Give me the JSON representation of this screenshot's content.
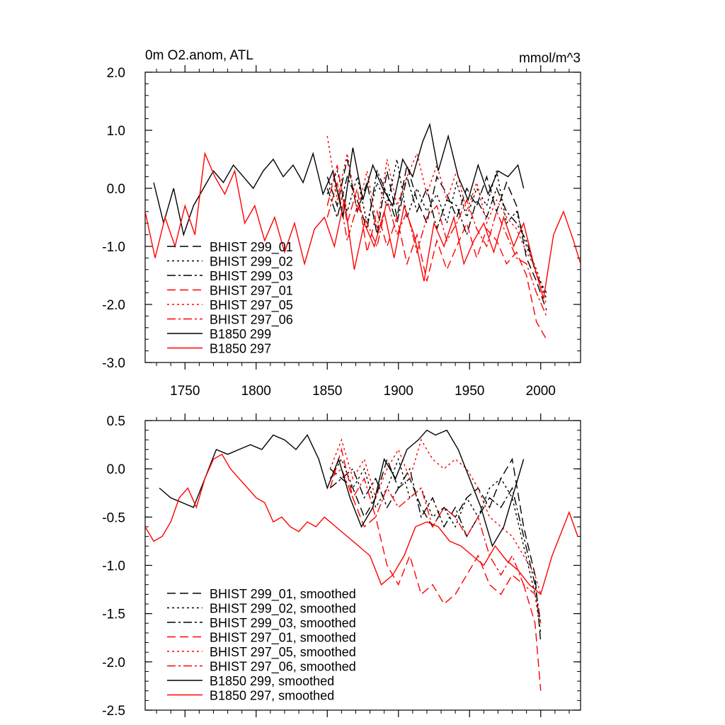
{
  "colors": {
    "black": "#000000",
    "red": "#ff0000"
  },
  "chart_data": [
    {
      "type": "line",
      "title": "0m O2.anom, ATL",
      "units": "mmol/m^3",
      "xlim": [
        1722,
        2028
      ],
      "ylim": [
        -3.0,
        2.0
      ],
      "xticks": [
        1750,
        1800,
        1850,
        1900,
        1950,
        2000
      ],
      "yticks": [
        2.0,
        1.0,
        0.0,
        -1.0,
        -2.0,
        -3.0
      ],
      "ytick_labels": [
        "2.0",
        "1.0",
        "0.0",
        "-1.0",
        "-2.0",
        "-3.0"
      ],
      "xtick_labels": [
        "1750",
        "1800",
        "1850",
        "1900",
        "1950",
        "2000"
      ],
      "legend_position": "lower-left",
      "series": [
        {
          "name": "BHIST 299_01",
          "color": "#000000",
          "dash": "dash",
          "x": [
            1850,
            1857,
            1864,
            1871,
            1878,
            1885,
            1892,
            1899,
            1906,
            1913,
            1920,
            1927,
            1934,
            1941,
            1948,
            1955,
            1962,
            1969,
            1976,
            1983,
            1990,
            1997,
            2004
          ],
          "y": [
            0.2,
            -0.3,
            0.5,
            -0.4,
            0.1,
            -0.8,
            0.3,
            -0.5,
            0.4,
            -0.2,
            -0.6,
            0.2,
            -0.1,
            -0.5,
            0.0,
            -0.3,
            0.2,
            -0.4,
            0.1,
            -0.3,
            -1.2,
            -1.6,
            -2.1
          ]
        },
        {
          "name": "BHIST 299_02",
          "color": "#000000",
          "dash": "dot",
          "x": [
            1850,
            1857,
            1864,
            1871,
            1878,
            1885,
            1892,
            1899,
            1906,
            1913,
            1920,
            1927,
            1934,
            1941,
            1948,
            1955,
            1962,
            1969,
            1976,
            1983,
            1990,
            1997,
            2004
          ],
          "y": [
            -0.1,
            0.3,
            -0.4,
            0.2,
            -0.6,
            0.1,
            -0.3,
            0.5,
            -0.5,
            0.0,
            -0.4,
            -0.1,
            -0.6,
            0.1,
            -0.5,
            0.0,
            -0.3,
            0.3,
            -0.6,
            -0.4,
            -1.0,
            -1.4,
            -1.9
          ]
        },
        {
          "name": "BHIST 299_03",
          "color": "#000000",
          "dash": "dashdot",
          "x": [
            1850,
            1857,
            1864,
            1871,
            1878,
            1885,
            1892,
            1899,
            1906,
            1913,
            1920,
            1927,
            1934,
            1941,
            1948,
            1955,
            1962,
            1969,
            1976,
            1983,
            1990,
            1997,
            2004
          ],
          "y": [
            0.0,
            -0.5,
            0.2,
            -0.2,
            -0.7,
            0.3,
            -0.1,
            -0.6,
            0.2,
            -0.4,
            0.0,
            -0.7,
            -0.2,
            -0.3,
            -0.8,
            -0.2,
            -0.5,
            0.0,
            -0.4,
            -0.6,
            -0.9,
            -1.5,
            -1.8
          ]
        },
        {
          "name": "BHIST 297_01",
          "color": "#ff0000",
          "dash": "dash",
          "x": [
            1850,
            1857,
            1864,
            1871,
            1878,
            1885,
            1892,
            1899,
            1906,
            1913,
            1920,
            1927,
            1934,
            1941,
            1948,
            1955,
            1962,
            1969,
            1976,
            1983,
            1990,
            1997,
            2004
          ],
          "y": [
            -0.3,
            0.4,
            -0.6,
            0.0,
            -1.1,
            -0.4,
            -1.0,
            -0.5,
            -1.3,
            -0.8,
            -1.6,
            -0.9,
            -1.4,
            -1.0,
            -0.6,
            -1.2,
            -0.7,
            -0.9,
            -1.3,
            -1.1,
            -1.5,
            -2.3,
            -2.6
          ]
        },
        {
          "name": "BHIST 297_05",
          "color": "#ff0000",
          "dash": "dot",
          "x": [
            1850,
            1857,
            1864,
            1871,
            1878,
            1885,
            1892,
            1899,
            1906,
            1913,
            1920,
            1927,
            1934,
            1941,
            1948,
            1955,
            1962,
            1969,
            1976,
            1983,
            1990,
            1997,
            2004
          ],
          "y": [
            0.9,
            -0.2,
            0.6,
            -0.4,
            0.3,
            -0.7,
            0.5,
            -0.3,
            0.2,
            0.6,
            -0.1,
            0.4,
            -0.2,
            0.3,
            -0.4,
            0.1,
            -0.6,
            -0.2,
            -0.5,
            -0.7,
            -1.1,
            -1.4,
            -2.0
          ]
        },
        {
          "name": "BHIST 297_06",
          "color": "#ff0000",
          "dash": "dashdot",
          "x": [
            1850,
            1857,
            1864,
            1871,
            1878,
            1885,
            1892,
            1899,
            1906,
            1913,
            1920,
            1927,
            1934,
            1941,
            1948,
            1955,
            1962,
            1969,
            1976,
            1983,
            1990,
            1997,
            2004
          ],
          "y": [
            -0.5,
            0.1,
            -0.9,
            -0.3,
            -0.6,
            -1.0,
            -0.2,
            -0.8,
            -0.4,
            -1.1,
            -0.5,
            -0.3,
            -0.9,
            -0.6,
            -0.2,
            -0.7,
            -1.0,
            -0.4,
            -0.8,
            -1.2,
            -1.3,
            -1.8,
            -2.2
          ]
        },
        {
          "name": "B1850 299",
          "color": "#000000",
          "dash": "solid",
          "x": [
            1728,
            1735,
            1742,
            1749,
            1756,
            1763,
            1770,
            1777,
            1784,
            1791,
            1798,
            1805,
            1812,
            1819,
            1826,
            1833,
            1840,
            1847,
            1854,
            1861,
            1868,
            1875,
            1882,
            1889,
            1896,
            1903,
            1910,
            1917,
            1922,
            1928,
            1935,
            1942,
            1949,
            1956,
            1963,
            1970,
            1977,
            1984,
            1988
          ],
          "y": [
            0.1,
            -0.6,
            0.0,
            -0.8,
            -0.3,
            0.0,
            0.3,
            0.1,
            0.4,
            0.2,
            0.0,
            0.3,
            0.5,
            0.2,
            0.4,
            0.1,
            0.6,
            -0.1,
            0.3,
            -0.5,
            0.7,
            -0.2,
            0.4,
            0.0,
            -0.3,
            0.5,
            0.2,
            0.8,
            1.1,
            0.3,
            0.9,
            0.2,
            -0.2,
            0.4,
            -0.1,
            0.3,
            0.2,
            0.4,
            0.0
          ]
        },
        {
          "name": "B1850 297",
          "color": "#ff0000",
          "dash": "solid",
          "x": [
            1722,
            1729,
            1736,
            1743,
            1750,
            1757,
            1764,
            1771,
            1778,
            1785,
            1792,
            1799,
            1806,
            1813,
            1820,
            1827,
            1834,
            1841,
            1848,
            1855,
            1862,
            1869,
            1876,
            1883,
            1890,
            1897,
            1904,
            1911,
            1918,
            1925,
            1932,
            1939,
            1946,
            1953,
            1960,
            1967,
            1974,
            1981,
            1988,
            1995,
            2002,
            2009,
            2016,
            2023,
            2028
          ],
          "y": [
            -0.4,
            -1.2,
            -0.5,
            -1.0,
            -0.3,
            -0.8,
            0.6,
            0.2,
            -0.1,
            0.3,
            -0.6,
            -0.3,
            -0.9,
            -0.5,
            -1.1,
            -0.6,
            -1.3,
            -0.7,
            -0.5,
            -1.0,
            -0.2,
            -1.4,
            -0.6,
            -1.0,
            -0.4,
            -1.2,
            -0.3,
            -0.8,
            -1.6,
            -0.6,
            -1.0,
            -0.5,
            -1.3,
            -0.9,
            -0.6,
            -1.1,
            -0.5,
            -1.0,
            -0.6,
            -1.3,
            -1.9,
            -0.8,
            -0.4,
            -0.9,
            -1.3
          ]
        }
      ]
    },
    {
      "type": "line",
      "xlim": [
        1722,
        2028
      ],
      "ylim": [
        -2.5,
        0.5
      ],
      "yticks": [
        0.5,
        0.0,
        -0.5,
        -1.0,
        -1.5,
        -2.0,
        -2.5
      ],
      "ytick_labels": [
        "0.5",
        "0.0",
        "-0.5",
        "-1.0",
        "-1.5",
        "-2.0",
        "-2.5"
      ],
      "xticks": [
        1750,
        1800,
        1850,
        1900,
        1950,
        2000
      ],
      "legend_position": "lower-left",
      "series": [
        {
          "name": "BHIST 299_01, smoothed",
          "color": "#000000",
          "dash": "dash",
          "x": [
            1852,
            1860,
            1868,
            1876,
            1884,
            1892,
            1900,
            1908,
            1916,
            1924,
            1932,
            1940,
            1948,
            1956,
            1964,
            1972,
            1980,
            1988,
            1996,
            2000
          ],
          "y": [
            0.0,
            -0.1,
            -0.2,
            -0.5,
            -0.3,
            0.1,
            -0.2,
            -0.1,
            -0.4,
            -0.6,
            -0.4,
            -0.5,
            -0.3,
            -0.2,
            -0.4,
            -0.1,
            0.1,
            -0.6,
            -1.1,
            -1.8
          ]
        },
        {
          "name": "BHIST 299_02, smoothed",
          "color": "#000000",
          "dash": "dot",
          "x": [
            1852,
            1860,
            1868,
            1876,
            1884,
            1892,
            1900,
            1908,
            1916,
            1924,
            1932,
            1940,
            1948,
            1956,
            1964,
            1972,
            1980,
            1988,
            1996,
            2000
          ],
          "y": [
            -0.1,
            0.1,
            -0.2,
            0.0,
            -0.4,
            -0.2,
            0.1,
            -0.3,
            -0.2,
            -0.5,
            -0.4,
            -0.6,
            -0.3,
            -0.5,
            -0.2,
            -0.1,
            -0.3,
            -0.8,
            -1.3,
            -1.7
          ]
        },
        {
          "name": "BHIST 299_03, smoothed",
          "color": "#000000",
          "dash": "dashdot",
          "x": [
            1852,
            1860,
            1868,
            1876,
            1884,
            1892,
            1900,
            1908,
            1916,
            1924,
            1932,
            1940,
            1948,
            1956,
            1964,
            1972,
            1980,
            1988,
            1996,
            2000
          ],
          "y": [
            -0.2,
            -0.1,
            0.0,
            -0.3,
            -0.1,
            -0.4,
            -0.2,
            0.0,
            -0.5,
            -0.3,
            -0.6,
            -0.4,
            -0.7,
            -0.5,
            -0.3,
            -0.4,
            -0.2,
            -0.7,
            -1.2,
            -1.6
          ]
        },
        {
          "name": "BHIST 297_01, smoothed",
          "color": "#ff0000",
          "dash": "dash",
          "x": [
            1852,
            1860,
            1868,
            1876,
            1884,
            1892,
            1900,
            1908,
            1916,
            1924,
            1932,
            1940,
            1948,
            1956,
            1964,
            1972,
            1980,
            1988,
            1996,
            2000
          ],
          "y": [
            -0.2,
            0.2,
            -0.3,
            -0.6,
            -0.5,
            -1.0,
            -1.2,
            -0.9,
            -1.3,
            -1.2,
            -1.4,
            -1.3,
            -1.1,
            -0.9,
            -1.2,
            -1.3,
            -1.1,
            -1.2,
            -1.6,
            -2.3
          ]
        },
        {
          "name": "BHIST 297_05, smoothed",
          "color": "#ff0000",
          "dash": "dot",
          "x": [
            1852,
            1860,
            1868,
            1876,
            1884,
            1892,
            1900,
            1908,
            1916,
            1924,
            1932,
            1940,
            1948,
            1956,
            1964,
            1972,
            1980,
            1988,
            1996,
            2000
          ],
          "y": [
            0.0,
            0.3,
            -0.1,
            0.1,
            -0.3,
            0.0,
            0.2,
            -0.1,
            0.3,
            0.1,
            0.0,
            0.1,
            0.0,
            -0.2,
            -0.5,
            -0.6,
            -0.7,
            -0.9,
            -1.1,
            -1.3
          ]
        },
        {
          "name": "BHIST 297_06, smoothed",
          "color": "#ff0000",
          "dash": "dashdot",
          "x": [
            1852,
            1860,
            1868,
            1876,
            1884,
            1892,
            1900,
            1908,
            1916,
            1924,
            1932,
            1940,
            1948,
            1956,
            1964,
            1972,
            1980,
            1988,
            1996,
            2000
          ],
          "y": [
            -0.1,
            0.0,
            -0.3,
            -0.1,
            -0.5,
            -0.2,
            -0.4,
            -0.3,
            -0.2,
            -0.6,
            -0.4,
            -0.5,
            -0.7,
            -0.5,
            -0.9,
            -1.1,
            -0.9,
            -1.2,
            -1.3,
            -1.6
          ]
        },
        {
          "name": "B1850 299, smoothed",
          "color": "#000000",
          "dash": "solid",
          "x": [
            1732,
            1740,
            1748,
            1756,
            1764,
            1772,
            1780,
            1788,
            1796,
            1804,
            1812,
            1820,
            1828,
            1836,
            1844,
            1850,
            1858,
            1866,
            1874,
            1882,
            1890,
            1898,
            1906,
            1914,
            1920,
            1926,
            1934,
            1942,
            1950,
            1958,
            1966,
            1974,
            1982,
            1988
          ],
          "y": [
            -0.2,
            -0.3,
            -0.35,
            -0.4,
            -0.1,
            0.2,
            0.15,
            0.2,
            0.25,
            0.2,
            0.35,
            0.3,
            0.2,
            0.35,
            0.1,
            -0.2,
            0.1,
            -0.3,
            -0.6,
            -0.4,
            0.1,
            -0.1,
            0.2,
            0.3,
            0.4,
            0.35,
            0.4,
            0.2,
            -0.1,
            -0.4,
            -0.8,
            -0.6,
            -0.2,
            0.1
          ]
        },
        {
          "name": "B1850 297, smoothed",
          "color": "#ff0000",
          "dash": "solid",
          "x": [
            1722,
            1728,
            1734,
            1740,
            1746,
            1752,
            1758,
            1764,
            1770,
            1776,
            1782,
            1788,
            1794,
            1800,
            1806,
            1812,
            1818,
            1824,
            1830,
            1836,
            1842,
            1848,
            1856,
            1864,
            1872,
            1880,
            1888,
            1896,
            1904,
            1912,
            1920,
            1928,
            1936,
            1944,
            1952,
            1960,
            1968,
            1976,
            1984,
            1992,
            2000,
            2008,
            2016,
            2020,
            2026
          ],
          "y": [
            -0.6,
            -0.75,
            -0.7,
            -0.55,
            -0.3,
            -0.2,
            -0.4,
            -0.1,
            0.1,
            0.15,
            0.0,
            -0.1,
            -0.2,
            -0.3,
            -0.35,
            -0.55,
            -0.5,
            -0.6,
            -0.65,
            -0.55,
            -0.6,
            -0.5,
            -0.6,
            -0.7,
            -0.8,
            -0.9,
            -1.2,
            -1.1,
            -0.9,
            -0.6,
            -0.55,
            -0.6,
            -0.75,
            -0.8,
            -0.9,
            -1.0,
            -0.8,
            -0.95,
            -1.05,
            -1.2,
            -1.3,
            -0.9,
            -0.6,
            -0.45,
            -0.7
          ]
        }
      ]
    }
  ]
}
